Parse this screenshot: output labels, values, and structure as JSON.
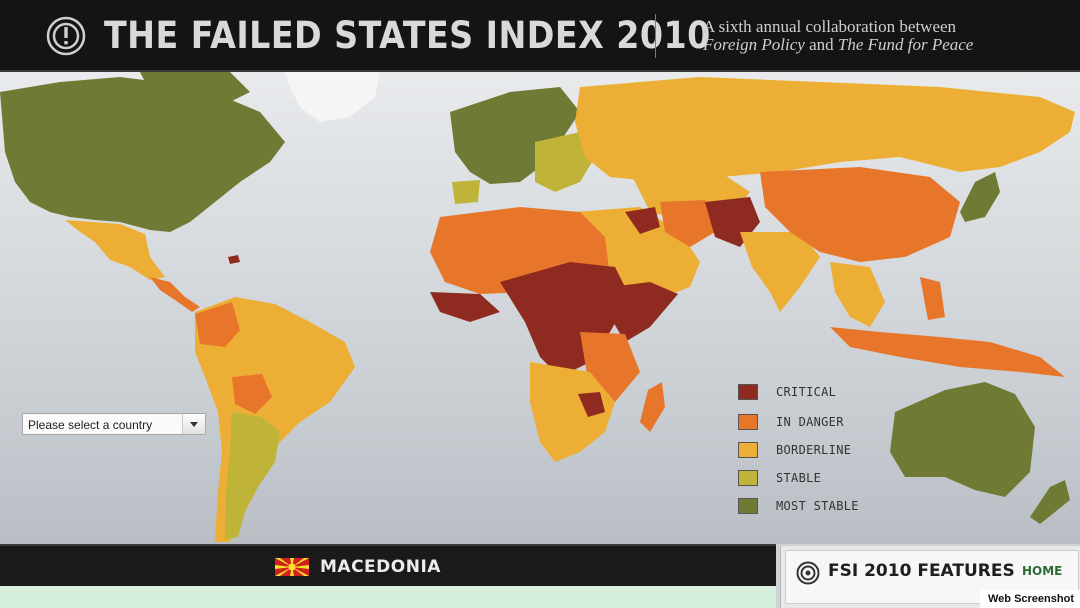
{
  "header": {
    "title": "THE FAILED STATES INDEX 2010",
    "tagline_line1": "A sixth annual collaboration between",
    "tagline_pub1": "Foreign Policy",
    "tagline_and": "and",
    "tagline_pub2": "The Fund for Peace"
  },
  "map": {
    "country_select_value": "Please select a country",
    "colors": {
      "critical": "#8e2a1f",
      "in_danger": "#e8762a",
      "borderline": "#ecae35",
      "stable": "#bfb437",
      "most_stable": "#6f7a35",
      "ocean": "#dcdfe2"
    },
    "legend": [
      {
        "label": "CRITICAL",
        "color": "#8e2a1f"
      },
      {
        "label": "IN DANGER",
        "color": "#e8762a"
      },
      {
        "label": "BORDERLINE",
        "color": "#ecae35"
      },
      {
        "label": "STABLE",
        "color": "#bfb437"
      },
      {
        "label": "MOST STABLE",
        "color": "#6f7a35"
      }
    ]
  },
  "country_panel": {
    "country": "MACEDONIA",
    "flag_color": "#d2201f",
    "flag_sun_color": "#f8e12c"
  },
  "features": {
    "title": "FSI 2010 FEATURES",
    "home": "HOME",
    "icon": "target-icon"
  },
  "watermark": "Web Screenshot"
}
